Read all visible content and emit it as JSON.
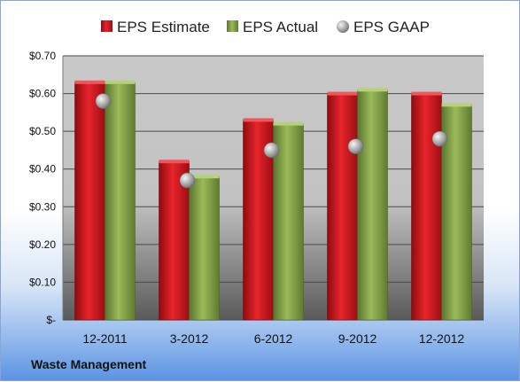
{
  "company": "Waste Management",
  "legend": [
    {
      "label": "EPS Estimate",
      "icon": "red-bar-swatch-icon"
    },
    {
      "label": "EPS Actual",
      "icon": "green-bar-swatch-icon"
    },
    {
      "label": "EPS GAAP",
      "icon": "gray-sphere-icon"
    }
  ],
  "colors": {
    "estimate": "#c0141c",
    "actual": "#77933c",
    "gaap": "#b0b0b0"
  },
  "chart_data": {
    "type": "bar",
    "categories": [
      "12-2011",
      "3-2012",
      "6-2012",
      "9-2012",
      "12-2012"
    ],
    "series": [
      {
        "name": "EPS Estimate",
        "kind": "bar",
        "values": [
          0.63,
          0.42,
          0.53,
          0.6,
          0.6
        ]
      },
      {
        "name": "EPS Actual",
        "kind": "bar",
        "values": [
          0.63,
          0.38,
          0.52,
          0.61,
          0.57
        ]
      },
      {
        "name": "EPS GAAP",
        "kind": "marker",
        "values": [
          0.58,
          0.37,
          0.45,
          0.46,
          0.48
        ]
      }
    ],
    "ylim": [
      0,
      0.7
    ],
    "yticks": [
      0,
      0.1,
      0.2,
      0.3,
      0.4,
      0.5,
      0.6,
      0.7
    ],
    "ytick_labels": [
      "$-",
      "$0.10",
      "$0.20",
      "$0.30",
      "$0.40",
      "$0.50",
      "$0.60",
      "$0.70"
    ],
    "grid": true,
    "legend_position": "top"
  }
}
